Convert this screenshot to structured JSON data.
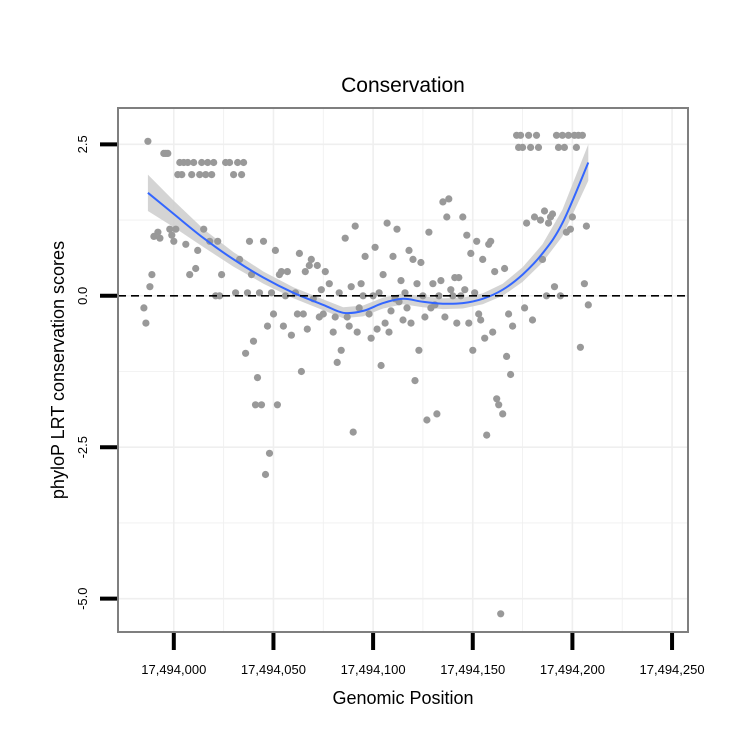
{
  "chart_data": {
    "type": "scatter",
    "title": "Conservation",
    "xlabel": "Genomic Position",
    "ylabel": "phyloP LRT conservation scores",
    "xlim": [
      17493972,
      17494258
    ],
    "ylim": [
      -5.55,
      3.1
    ],
    "x_ticks": [
      17494000,
      17494050,
      17494100,
      17494150,
      17494200,
      17494250
    ],
    "x_tick_labels": [
      "17,494,000",
      "17,494,050",
      "17,494,100",
      "17,494,150",
      "17,494,200",
      "17,494,250"
    ],
    "y_ticks": [
      2.5,
      0.0,
      -2.5,
      -5.0
    ],
    "y_tick_labels": [
      "2.5",
      "0.0",
      "-2.5",
      "-5.0"
    ],
    "reference_line": {
      "y": 0,
      "style": "dashed",
      "color": "#000000"
    },
    "grid": true,
    "legend": "none",
    "colors": {
      "points": "#999999",
      "smooth": "#3366ff",
      "ribbon": "#cccccc",
      "panel_border": "#7f7f7f",
      "grid": "#efefef"
    },
    "series": [
      {
        "name": "phyloP scores",
        "points": [
          [
            17493987,
            2.55
          ],
          [
            17493988,
            0.15
          ],
          [
            17493986,
            -0.45
          ],
          [
            17493985,
            -0.2
          ],
          [
            17493989,
            0.35
          ],
          [
            17493990,
            0.98
          ],
          [
            17493992,
            1.05
          ],
          [
            17493993,
            0.95
          ],
          [
            17493995,
            2.35
          ],
          [
            17493996,
            2.35
          ],
          [
            17493997,
            2.35
          ],
          [
            17493998,
            1.1
          ],
          [
            17493999,
            1.0
          ],
          [
            17494000,
            0.9
          ],
          [
            17494001,
            1.1
          ],
          [
            17494002,
            2.0
          ],
          [
            17494003,
            2.2
          ],
          [
            17494004,
            2.0
          ],
          [
            17494005,
            2.2
          ],
          [
            17494006,
            0.85
          ],
          [
            17494007,
            2.2
          ],
          [
            17494008,
            0.35
          ],
          [
            17494009,
            2.0
          ],
          [
            17494010,
            2.2
          ],
          [
            17494011,
            0.45
          ],
          [
            17494012,
            0.75
          ],
          [
            17494013,
            2.0
          ],
          [
            17494014,
            2.2
          ],
          [
            17494015,
            1.1
          ],
          [
            17494016,
            2.0
          ],
          [
            17494017,
            2.2
          ],
          [
            17494018,
            0.9
          ],
          [
            17494019,
            2.0
          ],
          [
            17494020,
            2.2
          ],
          [
            17494021,
            0.0
          ],
          [
            17494022,
            0.9
          ],
          [
            17494023,
            0.0
          ],
          [
            17494024,
            0.35
          ],
          [
            17494026,
            2.2
          ],
          [
            17494028,
            2.2
          ],
          [
            17494030,
            2.0
          ],
          [
            17494031,
            0.05
          ],
          [
            17494032,
            2.2
          ],
          [
            17494033,
            0.6
          ],
          [
            17494034,
            2.0
          ],
          [
            17494035,
            2.2
          ],
          [
            17494036,
            -0.95
          ],
          [
            17494037,
            0.05
          ],
          [
            17494038,
            0.9
          ],
          [
            17494039,
            0.35
          ],
          [
            17494040,
            -0.75
          ],
          [
            17494041,
            -1.8
          ],
          [
            17494042,
            -1.35
          ],
          [
            17494043,
            0.05
          ],
          [
            17494044,
            -1.8
          ],
          [
            17494045,
            0.9
          ],
          [
            17494046,
            -2.95
          ],
          [
            17494047,
            -0.5
          ],
          [
            17494048,
            -2.6
          ],
          [
            17494049,
            0.05
          ],
          [
            17494050,
            -0.3
          ],
          [
            17494051,
            0.75
          ],
          [
            17494052,
            -1.8
          ],
          [
            17494053,
            0.35
          ],
          [
            17494054,
            0.4
          ],
          [
            17494055,
            -0.5
          ],
          [
            17494056,
            0.0
          ],
          [
            17494057,
            0.4
          ],
          [
            17494059,
            -0.65
          ],
          [
            17494061,
            0.05
          ],
          [
            17494062,
            -0.3
          ],
          [
            17494063,
            0.7
          ],
          [
            17494064,
            -1.25
          ],
          [
            17494065,
            -0.3
          ],
          [
            17494066,
            0.4
          ],
          [
            17494067,
            -0.55
          ],
          [
            17494068,
            0.5
          ],
          [
            17494069,
            0.6
          ],
          [
            17494070,
            -0.05
          ],
          [
            17494072,
            0.5
          ],
          [
            17494073,
            -0.35
          ],
          [
            17494074,
            0.1
          ],
          [
            17494075,
            -0.3
          ],
          [
            17494076,
            0.4
          ],
          [
            17494078,
            0.2
          ],
          [
            17494080,
            -0.6
          ],
          [
            17494081,
            -0.35
          ],
          [
            17494082,
            -1.1
          ],
          [
            17494083,
            0.05
          ],
          [
            17494084,
            -0.9
          ],
          [
            17494086,
            0.95
          ],
          [
            17494087,
            -0.35
          ],
          [
            17494088,
            -0.5
          ],
          [
            17494089,
            0.15
          ],
          [
            17494090,
            -2.25
          ],
          [
            17494091,
            1.15
          ],
          [
            17494092,
            -0.6
          ],
          [
            17494093,
            -0.2
          ],
          [
            17494094,
            0.2
          ],
          [
            17494095,
            0.0
          ],
          [
            17494096,
            0.65
          ],
          [
            17494098,
            -0.3
          ],
          [
            17494099,
            -0.7
          ],
          [
            17494100,
            0.0
          ],
          [
            17494101,
            0.8
          ],
          [
            17494102,
            -0.55
          ],
          [
            17494103,
            0.05
          ],
          [
            17494104,
            -1.15
          ],
          [
            17494105,
            0.35
          ],
          [
            17494106,
            -0.45
          ],
          [
            17494107,
            1.2
          ],
          [
            17494108,
            -0.6
          ],
          [
            17494109,
            -0.25
          ],
          [
            17494110,
            0.65
          ],
          [
            17494111,
            -0.05
          ],
          [
            17494112,
            1.1
          ],
          [
            17494113,
            -0.1
          ],
          [
            17494114,
            0.25
          ],
          [
            17494115,
            -0.4
          ],
          [
            17494116,
            0.05
          ],
          [
            17494117,
            -0.2
          ],
          [
            17494118,
            0.75
          ],
          [
            17494119,
            -0.45
          ],
          [
            17494120,
            0.6
          ],
          [
            17494121,
            -1.4
          ],
          [
            17494122,
            0.2
          ],
          [
            17494123,
            -0.9
          ],
          [
            17494124,
            0.55
          ],
          [
            17494125,
            0.0
          ],
          [
            17494126,
            -0.35
          ],
          [
            17494127,
            -2.05
          ],
          [
            17494128,
            1.05
          ],
          [
            17494129,
            -0.2
          ],
          [
            17494130,
            0.2
          ],
          [
            17494131,
            -0.15
          ],
          [
            17494132,
            -1.95
          ],
          [
            17494133,
            0.0
          ],
          [
            17494134,
            0.25
          ],
          [
            17494135,
            1.55
          ],
          [
            17494136,
            -0.35
          ],
          [
            17494137,
            1.3
          ],
          [
            17494138,
            1.6
          ],
          [
            17494139,
            0.1
          ],
          [
            17494140,
            0.0
          ],
          [
            17494141,
            0.3
          ],
          [
            17494142,
            -0.45
          ],
          [
            17494143,
            0.3
          ],
          [
            17494144,
            0.0
          ],
          [
            17494145,
            1.3
          ],
          [
            17494146,
            0.1
          ],
          [
            17494147,
            1.0
          ],
          [
            17494148,
            -0.45
          ],
          [
            17494149,
            0.7
          ],
          [
            17494150,
            -0.9
          ],
          [
            17494151,
            0.05
          ],
          [
            17494152,
            0.9
          ],
          [
            17494153,
            -0.3
          ],
          [
            17494154,
            -0.4
          ],
          [
            17494155,
            0.6
          ],
          [
            17494156,
            -0.7
          ],
          [
            17494157,
            -2.3
          ],
          [
            17494158,
            0.85
          ],
          [
            17494159,
            0.9
          ],
          [
            17494160,
            -0.6
          ],
          [
            17494161,
            0.4
          ],
          [
            17494162,
            -1.7
          ],
          [
            17494163,
            -1.8
          ],
          [
            17494164,
            -5.25
          ],
          [
            17494165,
            -1.95
          ],
          [
            17494166,
            0.45
          ],
          [
            17494167,
            -1.0
          ],
          [
            17494168,
            -0.3
          ],
          [
            17494169,
            -1.3
          ],
          [
            17494170,
            -0.5
          ],
          [
            17494172,
            2.65
          ],
          [
            17494173,
            2.45
          ],
          [
            17494174,
            2.65
          ],
          [
            17494175,
            2.45
          ],
          [
            17494176,
            -0.2
          ],
          [
            17494177,
            1.2
          ],
          [
            17494178,
            2.65
          ],
          [
            17494179,
            2.45
          ],
          [
            17494180,
            -0.4
          ],
          [
            17494181,
            1.3
          ],
          [
            17494182,
            2.65
          ],
          [
            17494183,
            2.45
          ],
          [
            17494184,
            1.25
          ],
          [
            17494185,
            0.6
          ],
          [
            17494186,
            1.4
          ],
          [
            17494187,
            0.0
          ],
          [
            17494188,
            1.2
          ],
          [
            17494189,
            1.3
          ],
          [
            17494190,
            1.35
          ],
          [
            17494191,
            0.15
          ],
          [
            17494192,
            2.65
          ],
          [
            17494193,
            2.45
          ],
          [
            17494194,
            0.0
          ],
          [
            17494195,
            2.65
          ],
          [
            17494196,
            2.45
          ],
          [
            17494197,
            1.05
          ],
          [
            17494198,
            2.65
          ],
          [
            17494199,
            1.1
          ],
          [
            17494200,
            1.3
          ],
          [
            17494201,
            2.65
          ],
          [
            17494202,
            2.45
          ],
          [
            17494203,
            2.65
          ],
          [
            17494204,
            -0.85
          ],
          [
            17494205,
            2.65
          ],
          [
            17494206,
            0.2
          ],
          [
            17494207,
            1.15
          ],
          [
            17494208,
            -0.15
          ]
        ]
      }
    ],
    "smooth": {
      "name": "loess fit",
      "x": [
        17493987,
        17494000,
        17494015,
        17494030,
        17494045,
        17494060,
        17494075,
        17494085,
        17494095,
        17494105,
        17494115,
        17494125,
        17494135,
        17494145,
        17494155,
        17494165,
        17494175,
        17494185,
        17494195,
        17494208
      ],
      "y": [
        1.7,
        1.35,
        0.95,
        0.6,
        0.3,
        0.05,
        -0.15,
        -0.28,
        -0.25,
        -0.12,
        -0.05,
        -0.1,
        -0.13,
        -0.12,
        -0.05,
        0.1,
        0.35,
        0.7,
        1.2,
        2.2
      ],
      "se": [
        0.3,
        0.22,
        0.15,
        0.12,
        0.1,
        0.09,
        0.09,
        0.09,
        0.09,
        0.09,
        0.09,
        0.09,
        0.09,
        0.09,
        0.09,
        0.1,
        0.12,
        0.15,
        0.22,
        0.3
      ]
    }
  }
}
